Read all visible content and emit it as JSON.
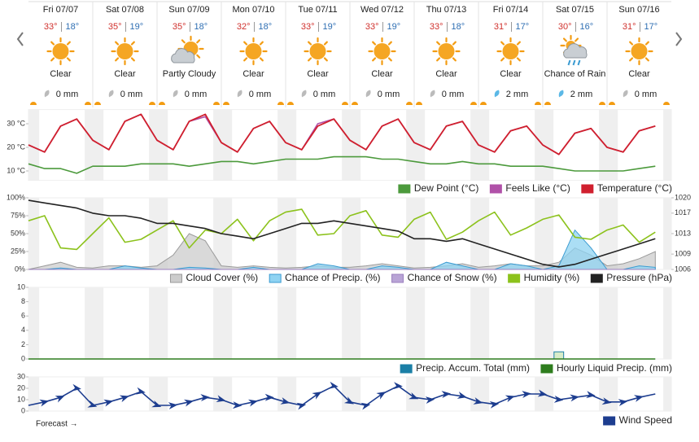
{
  "forecast": {
    "days": [
      {
        "date": "Fri 07/07",
        "high": "33°",
        "low": "18°",
        "condition": "Clear",
        "precip": "0 mm"
      },
      {
        "date": "Sat 07/08",
        "high": "35°",
        "low": "19°",
        "condition": "Clear",
        "precip": "0 mm"
      },
      {
        "date": "Sun 07/09",
        "high": "35°",
        "low": "18°",
        "condition": "Partly Cloudy",
        "precip": "0 mm"
      },
      {
        "date": "Mon 07/10",
        "high": "32°",
        "low": "18°",
        "condition": "Clear",
        "precip": "0 mm"
      },
      {
        "date": "Tue 07/11",
        "high": "33°",
        "low": "19°",
        "condition": "Clear",
        "precip": "0 mm"
      },
      {
        "date": "Wed 07/12",
        "high": "33°",
        "low": "19°",
        "condition": "Clear",
        "precip": "0 mm"
      },
      {
        "date": "Thu 07/13",
        "high": "33°",
        "low": "18°",
        "condition": "Clear",
        "precip": "0 mm"
      },
      {
        "date": "Fri 07/14",
        "high": "31°",
        "low": "17°",
        "condition": "Clear",
        "precip": "2 mm"
      },
      {
        "date": "Sat 07/15",
        "high": "30°",
        "low": "16°",
        "condition": "Chance of Rain",
        "precip": "2 mm"
      },
      {
        "date": "Sun 07/16",
        "high": "31°",
        "low": "17°",
        "condition": "Clear",
        "precip": "0 mm"
      }
    ]
  },
  "chart_data": [
    {
      "type": "line",
      "ylim": [
        6,
        36
      ],
      "yticks": [
        {
          "value": 10,
          "label": "10 °C"
        },
        {
          "value": 20,
          "label": "20 °C"
        },
        {
          "value": 30,
          "label": "30 °C"
        }
      ],
      "legend": "bottom-right",
      "series": [
        {
          "name": "Dew Point (°C)",
          "color": "#4c9a3c",
          "draw": "line",
          "values": [
            13,
            11,
            11,
            9,
            12,
            12,
            12,
            13,
            13,
            13,
            12,
            13,
            14,
            14,
            13,
            14,
            15,
            15,
            15,
            16,
            16,
            16,
            15,
            15,
            14,
            13,
            13,
            14,
            13,
            13,
            12,
            12,
            12,
            11,
            10,
            10,
            10,
            10,
            11,
            12
          ]
        },
        {
          "name": "Feels Like (°C)",
          "color": "#b051a8",
          "draw": "line",
          "values": [
            21,
            18,
            29,
            32,
            23,
            19,
            31,
            34,
            23,
            19,
            31,
            33,
            22,
            18,
            28,
            31,
            22,
            19,
            30,
            32,
            23,
            19,
            29,
            32,
            22,
            19,
            29,
            31,
            21,
            18,
            27,
            29,
            21,
            17,
            26,
            28,
            20,
            18,
            27,
            29
          ]
        },
        {
          "name": "Temperature (°C)",
          "color": "#d0202e",
          "draw": "line",
          "values": [
            21,
            18,
            29,
            32,
            23,
            19,
            31,
            34,
            23,
            19,
            31,
            34,
            22,
            18,
            28,
            31,
            22,
            19,
            29,
            32,
            23,
            19,
            29,
            32,
            22,
            19,
            29,
            31,
            21,
            18,
            27,
            29,
            21,
            17,
            26,
            28,
            20,
            18,
            27,
            29
          ]
        }
      ]
    },
    {
      "type": "line",
      "ylim": [
        0,
        100
      ],
      "yticks": [
        {
          "value": 0,
          "label": "0%"
        },
        {
          "value": 25,
          "label": "25%"
        },
        {
          "value": 50,
          "label": "50%"
        },
        {
          "value": 75,
          "label": "75%"
        },
        {
          "value": 100,
          "label": "100%"
        }
      ],
      "y2lim": [
        1006,
        1020
      ],
      "y2ticks": [
        1006,
        1009,
        1013,
        1017,
        1020
      ],
      "legend": "bottom-right",
      "series": [
        {
          "name": "Cloud Cover (%)",
          "color": "#9a9a9a",
          "fill": "#cccccc",
          "draw": "area",
          "values": [
            0,
            5,
            10,
            3,
            2,
            5,
            5,
            3,
            5,
            20,
            50,
            40,
            5,
            3,
            5,
            3,
            2,
            3,
            5,
            3,
            3,
            5,
            8,
            5,
            2,
            3,
            5,
            8,
            3,
            5,
            8,
            5,
            5,
            10,
            30,
            20,
            5,
            8,
            15,
            25
          ]
        },
        {
          "name": "Chance of Precip. (%)",
          "color": "#3b9bd1",
          "fill": "#8fd3f2",
          "draw": "area",
          "values": [
            0,
            0,
            2,
            0,
            0,
            0,
            5,
            2,
            0,
            0,
            3,
            2,
            0,
            0,
            3,
            0,
            0,
            0,
            8,
            5,
            0,
            0,
            5,
            3,
            0,
            0,
            10,
            5,
            0,
            0,
            8,
            5,
            0,
            5,
            55,
            30,
            0,
            0,
            5,
            3
          ]
        },
        {
          "name": "Chance of Snow (%)",
          "color": "#9b7fbf",
          "fill": "#b9a4d6",
          "draw": "area",
          "values": [
            0,
            0,
            0,
            0,
            0,
            0,
            0,
            0,
            0,
            0,
            0,
            0,
            0,
            0,
            0,
            0,
            0,
            0,
            0,
            0,
            0,
            0,
            0,
            0,
            0,
            0,
            0,
            0,
            0,
            0,
            0,
            0,
            0,
            0,
            0,
            0,
            0,
            0,
            0,
            0
          ]
        },
        {
          "name": "Humidity (%)",
          "color": "#8cc21c",
          "draw": "line",
          "values": [
            68,
            75,
            30,
            28,
            50,
            72,
            38,
            42,
            55,
            68,
            30,
            55,
            50,
            70,
            40,
            68,
            80,
            84,
            48,
            50,
            75,
            82,
            48,
            45,
            70,
            80,
            42,
            52,
            68,
            80,
            48,
            58,
            70,
            76,
            45,
            42,
            55,
            62,
            38,
            52
          ]
        },
        {
          "name": "Pressure (hPa)",
          "color": "#222222",
          "draw": "line",
          "axis": "y2",
          "values": [
            1019.5,
            1019,
            1018.5,
            1018,
            1017,
            1016.5,
            1016.5,
            1016,
            1015,
            1015,
            1014.5,
            1014,
            1013,
            1012.5,
            1012,
            1013,
            1014,
            1015,
            1015,
            1015.5,
            1015,
            1014.5,
            1014,
            1013.5,
            1012,
            1012,
            1011.5,
            1012,
            1011,
            1010,
            1009,
            1008,
            1007,
            1006.5,
            1007,
            1008,
            1009,
            1010,
            1011,
            1012
          ]
        }
      ]
    },
    {
      "type": "line",
      "ylim": [
        0,
        10
      ],
      "yticks": [
        0,
        2,
        4,
        6,
        8,
        10
      ],
      "legend": "bottom-right",
      "series": [
        {
          "name": "Precip. Accum. Total (mm)",
          "color": "#1b7fa6",
          "draw": "bar",
          "values": [
            0,
            0,
            0,
            0,
            0,
            0,
            0,
            0,
            0,
            0,
            0,
            0,
            0,
            0,
            0,
            0,
            0,
            0,
            0,
            0,
            0,
            0,
            0,
            0,
            0,
            0,
            0,
            0,
            0,
            0,
            0,
            0,
            0,
            1,
            0,
            0,
            0,
            0,
            0,
            0
          ]
        },
        {
          "name": "Hourly Liquid Precip. (mm)",
          "color": "#2e7d1e",
          "draw": "line",
          "values": [
            0,
            0,
            0,
            0,
            0,
            0,
            0,
            0,
            0,
            0,
            0,
            0,
            0,
            0,
            0,
            0,
            0,
            0,
            0,
            0,
            0,
            0,
            0,
            0,
            0,
            0,
            0,
            0,
            0,
            0,
            0,
            0,
            0,
            0,
            0,
            0,
            0,
            0,
            0,
            0
          ]
        }
      ]
    },
    {
      "type": "line",
      "ylim": [
        0,
        30
      ],
      "yticks": [
        0,
        10,
        20,
        30
      ],
      "legend": "bottom-right",
      "footnote": "Forecast →",
      "series": [
        {
          "name": "Wind Speed",
          "color": "#1d3d8f",
          "draw": "line",
          "values": [
            5,
            8,
            12,
            20,
            5,
            8,
            12,
            17,
            5,
            5,
            8,
            12,
            10,
            5,
            8,
            12,
            8,
            5,
            15,
            22,
            8,
            5,
            15,
            22,
            12,
            10,
            15,
            13,
            8,
            6,
            12,
            15,
            15,
            10,
            12,
            14,
            8,
            8,
            12,
            15
          ]
        }
      ]
    }
  ]
}
